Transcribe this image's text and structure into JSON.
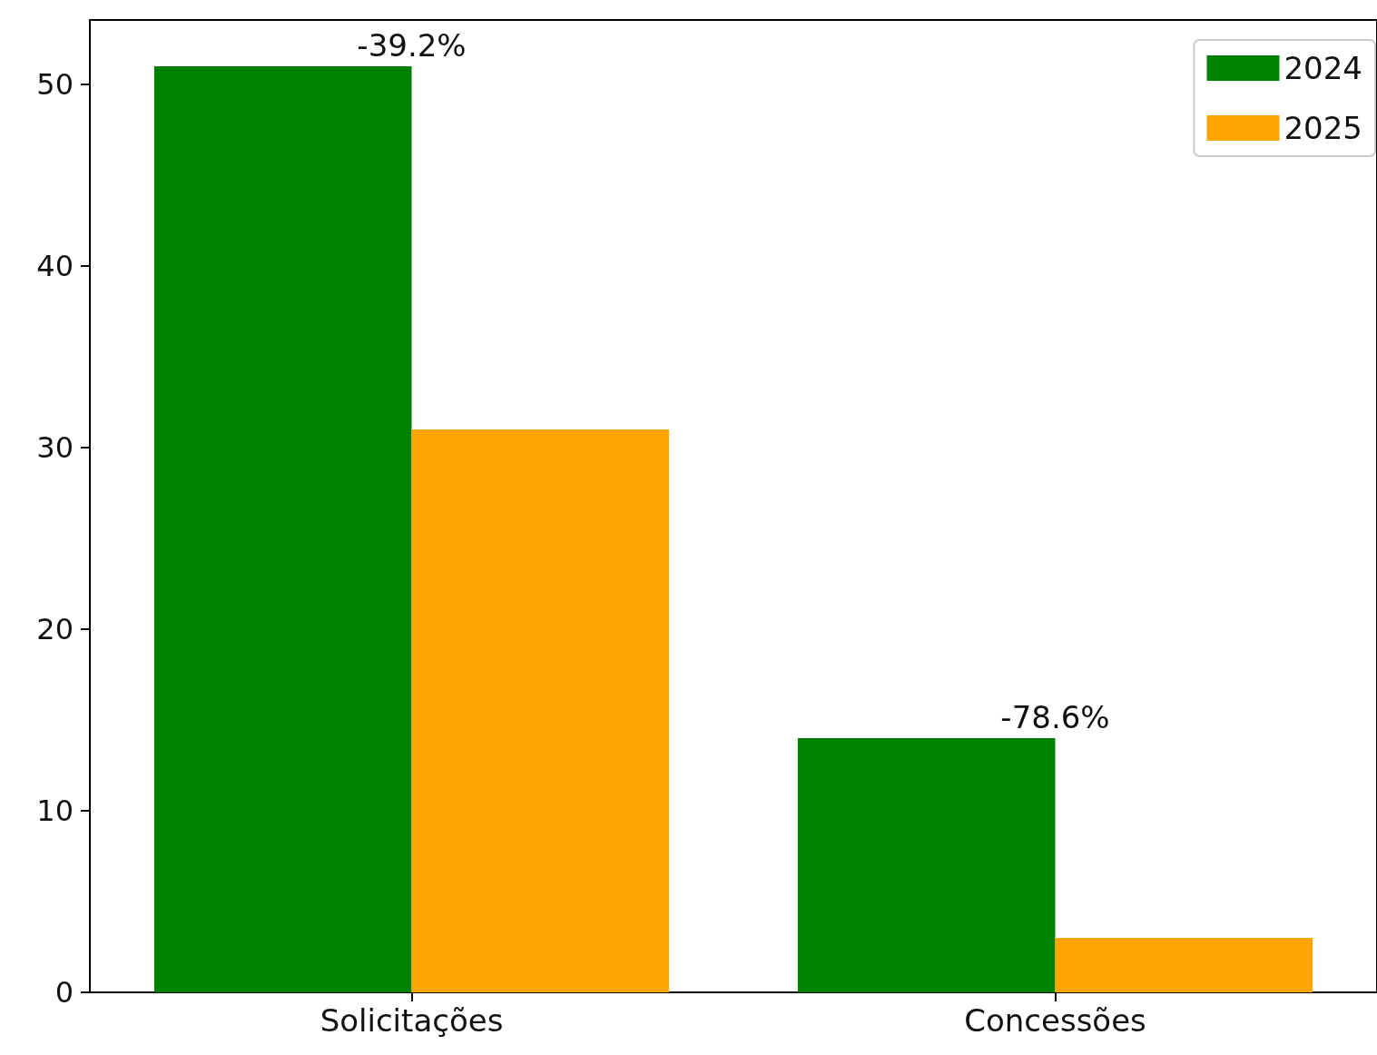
{
  "chart_data": {
    "type": "bar",
    "categories": [
      "Solicitações",
      "Concessões"
    ],
    "series": [
      {
        "name": "2024",
        "color": "#008000",
        "values": [
          51,
          14
        ]
      },
      {
        "name": "2025",
        "color": "#ffa500",
        "values": [
          31,
          3
        ]
      }
    ],
    "ylim": [
      0,
      53.55
    ],
    "yticks": [
      0,
      10,
      20,
      30,
      40,
      50
    ],
    "grid": false,
    "legend": "top right",
    "annotations": [
      {
        "text": "-39.2%",
        "x": "Solicitações",
        "y": 51
      },
      {
        "text": "-78.6%",
        "x": "Concessões",
        "y": 14
      }
    ]
  }
}
